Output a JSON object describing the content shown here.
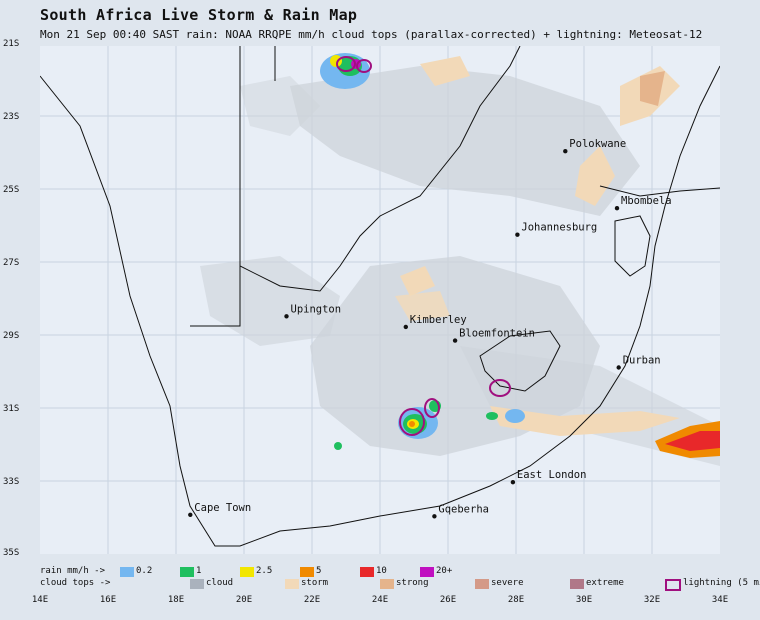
{
  "header": {
    "title": "South Africa Live Storm & Rain Map",
    "subtitle": "Mon 21 Sep 00:40 SAST   rain: NOAA RRQPE mm/h   cloud tops (parallax-corrected) + lightning: Meteosat-12"
  },
  "axes": {
    "y_labels": [
      "21S",
      "23S",
      "25S",
      "27S",
      "29S",
      "31S",
      "33S",
      "35S"
    ],
    "x_labels": [
      "14E",
      "16E",
      "18E",
      "20E",
      "22E",
      "24E",
      "26E",
      "28E",
      "30E",
      "32E",
      "34E"
    ],
    "lon_range": [
      14,
      34
    ],
    "lat_range": [
      -21,
      -35
    ]
  },
  "cities": [
    {
      "name": "Polokwane",
      "lon": 29.45,
      "lat": -23.9
    },
    {
      "name": "Mbombela",
      "lon": 30.97,
      "lat": -25.47
    },
    {
      "name": "Johannesburg",
      "lon": 28.04,
      "lat": -26.2
    },
    {
      "name": "Upington",
      "lon": 21.25,
      "lat": -28.45
    },
    {
      "name": "Kimberley",
      "lon": 24.76,
      "lat": -28.74
    },
    {
      "name": "Bloemfontein",
      "lon": 26.21,
      "lat": -29.12
    },
    {
      "name": "Durban",
      "lon": 31.02,
      "lat": -29.86
    },
    {
      "name": "East London",
      "lon": 27.91,
      "lat": -33.02
    },
    {
      "name": "Cape Town",
      "lon": 18.42,
      "lat": -33.92
    },
    {
      "name": "Gqeberha",
      "lon": 25.6,
      "lat": -33.96
    }
  ],
  "legend": {
    "rain_label": "rain mm/h ->",
    "rain": [
      {
        "label": "0.2",
        "color": "#74b7f0"
      },
      {
        "label": "1",
        "color": "#1fbf5f"
      },
      {
        "label": "2.5",
        "color": "#f2e600"
      },
      {
        "label": "5",
        "color": "#f08a00"
      },
      {
        "label": "10",
        "color": "#e8282a"
      },
      {
        "label": "20+",
        "color": "#c010c0"
      }
    ],
    "cloud_label": "cloud tops ->",
    "cloud": [
      {
        "label": "cloud",
        "color": "#aab2bd"
      },
      {
        "label": "storm",
        "color": "#f2d9b8"
      },
      {
        "label": "strong",
        "color": "#e5b48c"
      },
      {
        "label": "severe",
        "color": "#d49a88"
      },
      {
        "label": "extreme",
        "color": "#b07888"
      }
    ],
    "lightning": {
      "label": "lightning (5 min)",
      "color": "#a0107f"
    }
  }
}
